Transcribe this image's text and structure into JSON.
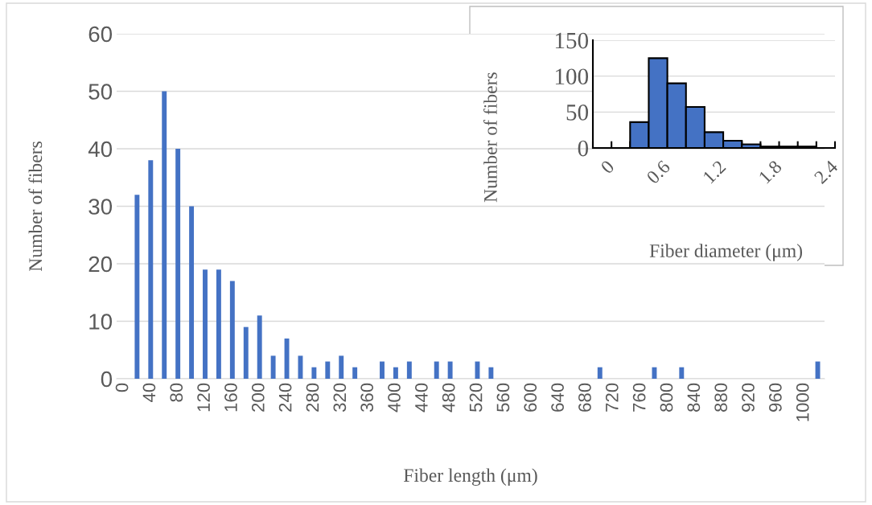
{
  "chart_data": [
    {
      "type": "bar",
      "xlabel": "Fiber length (μm)",
      "ylabel": "Number of fibers",
      "categories": [
        "0",
        null,
        "40",
        null,
        "80",
        null,
        "120",
        null,
        "160",
        null,
        "200",
        null,
        "240",
        null,
        "280",
        null,
        "320",
        null,
        "360",
        null,
        "400",
        null,
        "440",
        null,
        "480",
        null,
        "520",
        null,
        "560",
        null,
        "600",
        null,
        "640",
        null,
        "680",
        null,
        "720",
        null,
        "760",
        null,
        "800",
        null,
        "840",
        null,
        "880",
        null,
        "920",
        null,
        "960",
        null,
        "1000",
        null
      ],
      "values": [
        0,
        32,
        38,
        50,
        40,
        30,
        19,
        19,
        17,
        9,
        11,
        4,
        7,
        4,
        2,
        3,
        4,
        2,
        0,
        3,
        2,
        3,
        0,
        3,
        3,
        0,
        3,
        2,
        0,
        0,
        0,
        0,
        0,
        0,
        0,
        2,
        0,
        0,
        0,
        2,
        0,
        2,
        0,
        0,
        0,
        0,
        0,
        0,
        0,
        0,
        0,
        3
      ],
      "color": "#4472c4",
      "ylim": [
        0,
        60
      ],
      "yticks": [
        0,
        10,
        20,
        30,
        40,
        50,
        60
      ],
      "grid": "y"
    },
    {
      "type": "bar",
      "xlabel": "Fiber diameter (μm)",
      "ylabel": "Number of fibers",
      "categories": [
        "0",
        null,
        null,
        "0.6",
        null,
        null,
        "1.2",
        null,
        null,
        "1.8",
        null,
        null,
        "2.4"
      ],
      "values": [
        0,
        0,
        36,
        125,
        90,
        57,
        22,
        10,
        5,
        2,
        2,
        2,
        0
      ],
      "color": "#4472c4",
      "ylim": [
        0,
        150
      ],
      "yticks": [
        0,
        50,
        100,
        150
      ],
      "grid": "y"
    }
  ]
}
